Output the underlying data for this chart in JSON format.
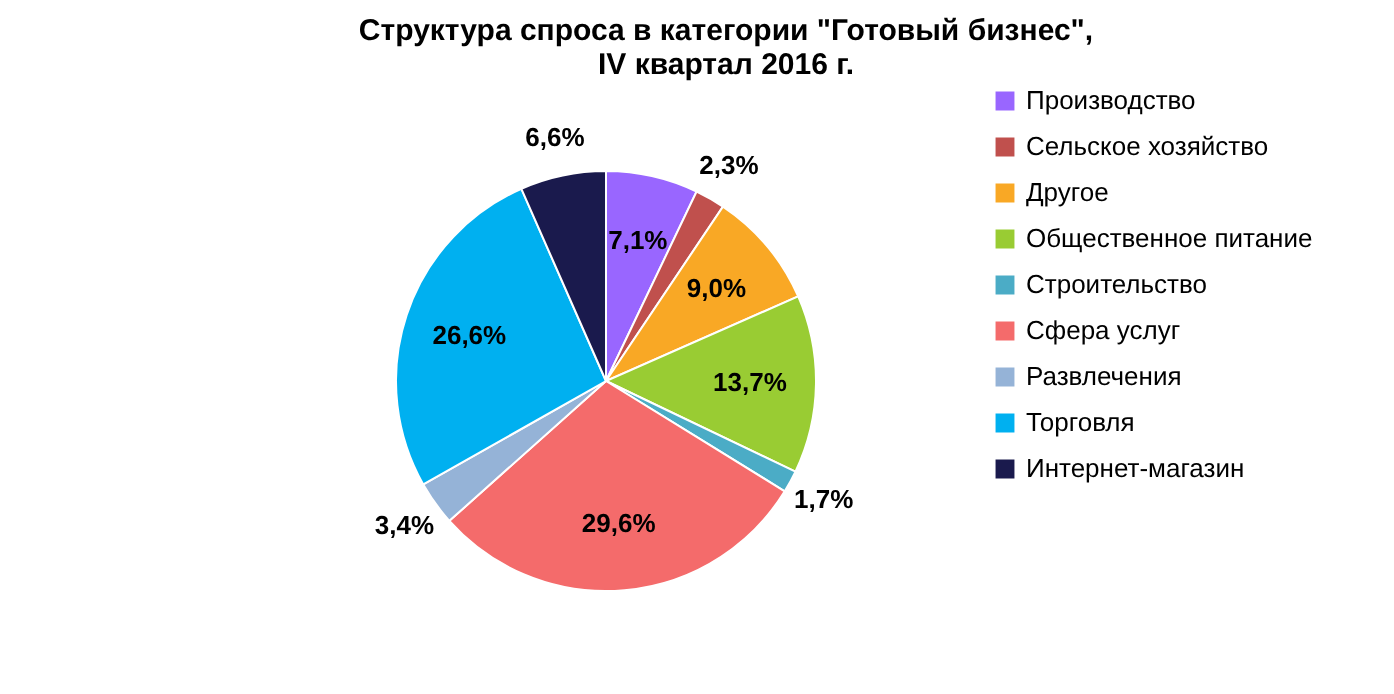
{
  "chart_data": {
    "type": "pie",
    "title": "Структура спроса в категории \"Готовый бизнес\", IV квартал 2016 г.",
    "categories": [
      "Производство",
      "Сельское хозяйство",
      "Другое",
      "Общественное питание",
      "Строительство",
      "Сфера услуг",
      "Развлечения",
      "Торговля",
      "Интернет-магазин"
    ],
    "values": [
      7.1,
      2.3,
      9.0,
      13.7,
      1.7,
      29.6,
      3.4,
      26.6,
      6.6
    ],
    "colors": [
      "#9966ff",
      "#c0504d",
      "#f9a825",
      "#99cc33",
      "#4bacc6",
      "#f46b6b",
      "#95b3d7",
      "#00b0f0",
      "#1a1a4d"
    ],
    "value_labels": [
      "7,1%",
      "2,3%",
      "9,0%",
      "13,7%",
      "1,7%",
      "29,6%",
      "3,4%",
      "26,6%",
      "6,6%"
    ],
    "legend": "right"
  }
}
